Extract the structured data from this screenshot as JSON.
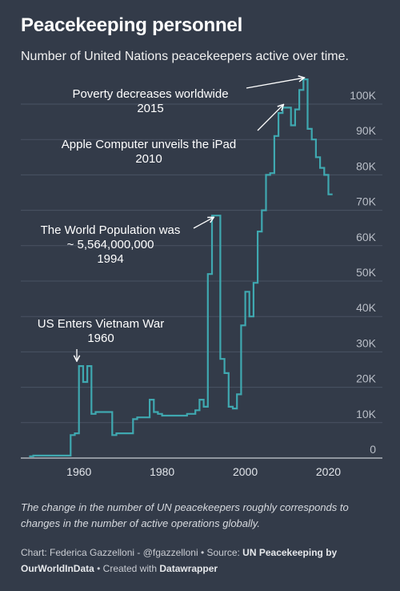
{
  "title": "Peacekeeping personnel",
  "subtitle": "Number of United Nations peacekeepers active over time.",
  "note": "The change in the number of UN peacekeepers roughly corresponds to changes in the number of active operations globally.",
  "footer": {
    "prefix": "Chart: Federica Gazzelloni - @fgazzelloni • Source: ",
    "source": "UN Peacekeeping by OurWorldInData",
    "middle": " • Created with ",
    "tool": "Datawrapper"
  },
  "colors": {
    "background": "#333b49",
    "line": "#3fa8b0",
    "grid": "#4a5363",
    "text": "#ffffff",
    "tick": "#b9bec7"
  },
  "chart_data": {
    "type": "line",
    "xlim": [
      1946,
      2033
    ],
    "ylim": [
      0,
      100000
    ],
    "y_ticks": [
      0,
      10000,
      20000,
      30000,
      40000,
      50000,
      60000,
      70000,
      80000,
      90000,
      100000
    ],
    "y_tick_labels": [
      "0",
      "10K",
      "20K",
      "30K",
      "40K",
      "50K",
      "60K",
      "70K",
      "80K",
      "90K",
      "100K"
    ],
    "x_ticks": [
      1960,
      1980,
      2000,
      2020
    ],
    "x_tick_labels": [
      "1960",
      "1980",
      "2000",
      "2020"
    ],
    "grid": "horizontal",
    "series": [
      {
        "x": [
          1948,
          1949,
          1950,
          1951,
          1952,
          1953,
          1954,
          1955,
          1956,
          1957,
          1958,
          1959,
          1960,
          1961,
          1962,
          1963,
          1964,
          1965,
          1966,
          1967,
          1968,
          1969,
          1970,
          1971,
          1972,
          1973,
          1974,
          1975,
          1976,
          1977,
          1978,
          1979,
          1980,
          1981,
          1982,
          1983,
          1984,
          1985,
          1986,
          1987,
          1988,
          1989,
          1990,
          1991,
          1992,
          1993,
          1994,
          1995,
          1996,
          1997,
          1998,
          1999,
          2000,
          2001,
          2002,
          2003,
          2004,
          2005,
          2006,
          2007,
          2008,
          2009,
          2010,
          2011,
          2012,
          2013,
          2014,
          2015,
          2016,
          2017,
          2018,
          2019,
          2020,
          2021
        ],
        "y": [
          500,
          700,
          700,
          700,
          700,
          700,
          700,
          700,
          700,
          700,
          6500,
          7000,
          26000,
          21500,
          26000,
          12500,
          13000,
          13000,
          13000,
          13000,
          6500,
          7000,
          7000,
          7000,
          7000,
          11000,
          11500,
          11500,
          11500,
          16500,
          13000,
          12500,
          12000,
          12000,
          12000,
          12000,
          12000,
          12000,
          12500,
          12500,
          13500,
          16500,
          14500,
          52000,
          68500,
          68500,
          28000,
          24000,
          14500,
          14000,
          18000,
          37500,
          47000,
          40000,
          49500,
          64000,
          70000,
          80000,
          80500,
          91000,
          97500,
          99000,
          99000,
          94000,
          98500,
          104000,
          107000,
          93000,
          90000,
          85000,
          82000,
          80000,
          74500,
          74500
        ]
      }
    ],
    "annotations": [
      {
        "lines": [
          "Poverty decreases worldwide",
          "2015"
        ],
        "x": 2015,
        "y": 107000
      },
      {
        "lines": [
          "Apple Computer unveils the iPad",
          "2010"
        ],
        "x": 2010,
        "y": 99000
      },
      {
        "lines": [
          "The World Population was",
          "~ 5,564,000,000",
          "1994"
        ],
        "x": 1994,
        "y": 68500
      },
      {
        "lines": [
          "US Enters Vietnam War",
          "1960"
        ],
        "x": 1960,
        "y": 26000
      }
    ]
  }
}
